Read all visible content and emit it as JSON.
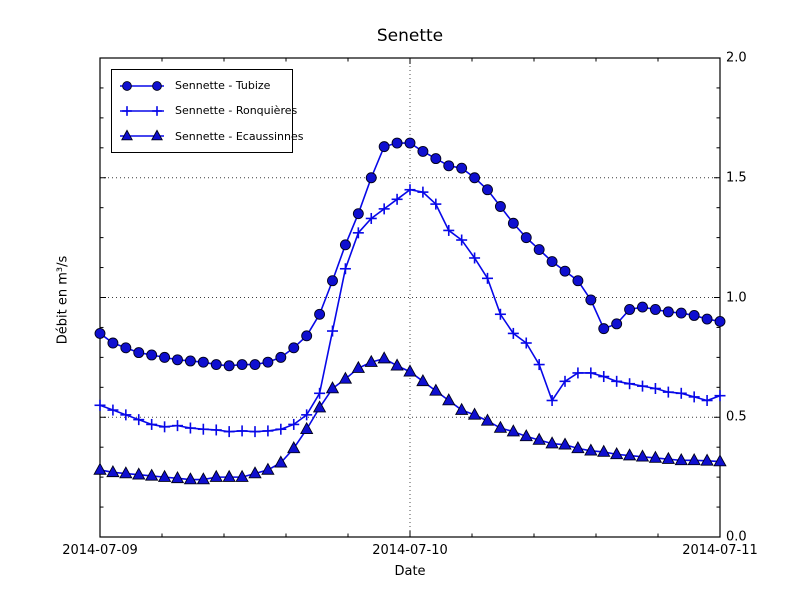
{
  "chart_data": {
    "type": "line",
    "title": "Senette",
    "xlabel": "Date",
    "ylabel": "Débit en m³/s",
    "x_tick_labels": [
      "2014-07-09",
      "2014-07-10",
      "2014-07-11"
    ],
    "y_tick_labels_right": [
      "2.0",
      "1.5",
      "1.0",
      "0.5",
      "0.0"
    ],
    "ylim": [
      0.0,
      2.0
    ],
    "xlim_hours": [
      0,
      48
    ],
    "x_major_tick_hours": [
      0,
      24,
      48
    ],
    "x_minor_tick_step_hours": 4.8,
    "y_major_tick_step": 0.5,
    "y_minor_tick_step": 0.125,
    "grid": {
      "h_lines": [
        0.5,
        1.0,
        1.5
      ],
      "v_lines_hours": [
        24
      ],
      "style": "dotted"
    },
    "legend_position": "upper left",
    "colors": {
      "line": "#0808e8",
      "marker_fill": "#0f0fd0",
      "marker_edge": "#000018",
      "axis": "#000000",
      "grid": "#3a3a3a",
      "background": "#ffffff"
    },
    "series": [
      {
        "name": "Sennette - Tubize",
        "marker": "circle",
        "values": [
          0.85,
          0.81,
          0.79,
          0.77,
          0.76,
          0.75,
          0.74,
          0.735,
          0.73,
          0.72,
          0.715,
          0.72,
          0.72,
          0.73,
          0.75,
          0.79,
          0.84,
          0.93,
          1.07,
          1.22,
          1.35,
          1.5,
          1.63,
          1.645,
          1.645,
          1.61,
          1.58,
          1.55,
          1.54,
          1.5,
          1.45,
          1.38,
          1.31,
          1.25,
          1.2,
          1.15,
          1.11,
          1.07,
          0.99,
          0.87,
          0.89,
          0.95,
          0.96,
          0.95,
          0.94,
          0.935,
          0.925,
          0.91,
          0.9
        ]
      },
      {
        "name": "Sennette - Ronquières",
        "marker": "plus",
        "values": [
          0.55,
          0.53,
          0.51,
          0.49,
          0.47,
          0.46,
          0.465,
          0.455,
          0.45,
          0.447,
          0.44,
          0.443,
          0.44,
          0.443,
          0.45,
          0.47,
          0.51,
          0.6,
          0.86,
          1.12,
          1.27,
          1.33,
          1.37,
          1.41,
          1.45,
          1.44,
          1.39,
          1.28,
          1.24,
          1.165,
          1.08,
          0.93,
          0.85,
          0.81,
          0.72,
          0.57,
          0.65,
          0.685,
          0.685,
          0.67,
          0.65,
          0.64,
          0.63,
          0.62,
          0.605,
          0.6,
          0.585,
          0.57,
          0.59
        ]
      },
      {
        "name": "Sennette - Ecaussinnes",
        "marker": "triangle",
        "values": [
          0.28,
          0.27,
          0.265,
          0.26,
          0.255,
          0.25,
          0.245,
          0.24,
          0.24,
          0.25,
          0.25,
          0.25,
          0.265,
          0.28,
          0.31,
          0.37,
          0.45,
          0.54,
          0.62,
          0.66,
          0.705,
          0.73,
          0.745,
          0.715,
          0.69,
          0.65,
          0.61,
          0.57,
          0.53,
          0.51,
          0.485,
          0.455,
          0.44,
          0.42,
          0.405,
          0.39,
          0.385,
          0.37,
          0.36,
          0.355,
          0.345,
          0.34,
          0.335,
          0.33,
          0.325,
          0.32,
          0.32,
          0.318,
          0.315
        ]
      }
    ]
  }
}
